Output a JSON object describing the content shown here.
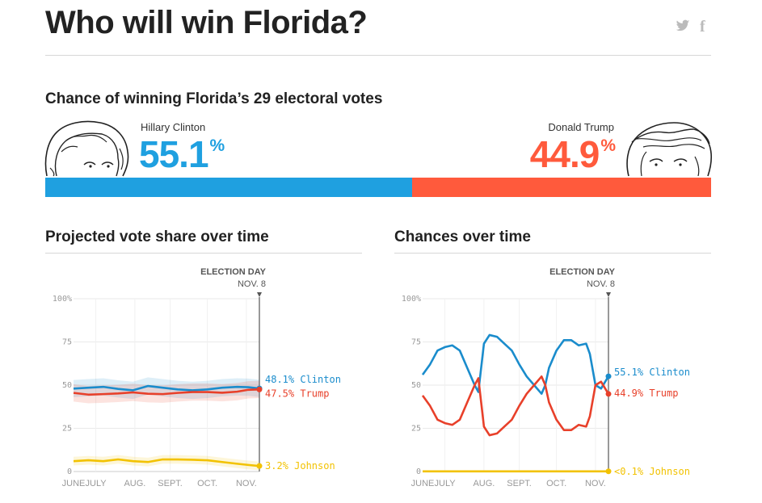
{
  "header": {
    "title": "Who will win Florida?",
    "share_twitter_icon": "twitter-icon",
    "share_facebook_icon": "facebook-icon"
  },
  "summary": {
    "heading": "Chance of winning Florida’s 29 electoral votes",
    "clinton": {
      "name": "Hillary Clinton",
      "value": "55.1",
      "unit": "%",
      "fraction": 0.551,
      "color": "#1fa0e0"
    },
    "trump": {
      "name": "Donald Trump",
      "value": "44.9",
      "unit": "%",
      "fraction": 0.449,
      "color": "#ff5a3c"
    }
  },
  "colors": {
    "clinton": "#1a8ccc",
    "trump": "#e8402a",
    "johnson": "#f2c200",
    "grid": "#e6e6e6"
  },
  "chart_data": [
    {
      "type": "line",
      "title": "Projected vote share over time",
      "marker_label": "ELECTION DAY",
      "marker_date": "NOV. 8",
      "xlabels": [
        "JUNE",
        "JULY",
        "AUG.",
        "SEPT.",
        "OCT.",
        "NOV."
      ],
      "yticks": [
        "0",
        "25",
        "50",
        "75",
        "100%"
      ],
      "ylim": [
        0,
        100
      ],
      "x": [
        0,
        0.08,
        0.16,
        0.24,
        0.32,
        0.4,
        0.48,
        0.56,
        0.64,
        0.72,
        0.8,
        0.88,
        0.94,
        1.0
      ],
      "series": [
        {
          "name": "Clinton",
          "end_label": "48.1% Clinton",
          "values": [
            48.0,
            48.5,
            49.0,
            47.8,
            47.0,
            49.5,
            48.5,
            47.5,
            47.0,
            47.5,
            48.5,
            49.0,
            48.8,
            48.1
          ]
        },
        {
          "name": "Trump",
          "end_label": "47.5% Trump",
          "values": [
            45.5,
            44.5,
            44.8,
            45.2,
            45.8,
            45.0,
            44.8,
            45.5,
            46.0,
            46.0,
            45.6,
            46.2,
            47.3,
            47.5
          ]
        },
        {
          "name": "Johnson",
          "end_label": "3.2% Johnson",
          "values": [
            6.0,
            6.5,
            6.0,
            7.0,
            6.0,
            5.5,
            7.0,
            7.0,
            6.8,
            6.5,
            5.5,
            4.5,
            3.8,
            3.2
          ]
        }
      ]
    },
    {
      "type": "line",
      "title": "Chances over time",
      "marker_label": "ELECTION DAY",
      "marker_date": "NOV. 8",
      "xlabels": [
        "JUNE",
        "JULY",
        "AUG.",
        "SEPT.",
        "OCT.",
        "NOV."
      ],
      "yticks": [
        "0",
        "25",
        "50",
        "75",
        "100%"
      ],
      "ylim": [
        0,
        100
      ],
      "x": [
        0,
        0.04,
        0.08,
        0.12,
        0.16,
        0.2,
        0.24,
        0.28,
        0.3,
        0.33,
        0.36,
        0.4,
        0.44,
        0.48,
        0.52,
        0.56,
        0.6,
        0.64,
        0.66,
        0.68,
        0.72,
        0.76,
        0.8,
        0.84,
        0.88,
        0.9,
        0.93,
        0.96,
        1.0
      ],
      "series": [
        {
          "name": "Clinton",
          "end_label": "55.1% Clinton",
          "values": [
            56,
            62,
            70,
            72,
            73,
            70,
            60,
            50,
            46,
            74,
            79,
            78,
            74,
            70,
            62,
            55,
            50,
            45,
            50,
            60,
            70,
            76,
            76,
            73,
            74,
            68,
            50,
            48,
            55.1
          ]
        },
        {
          "name": "Trump",
          "end_label": "44.9% Trump",
          "values": [
            44,
            38,
            30,
            28,
            27,
            30,
            40,
            50,
            54,
            26,
            21,
            22,
            26,
            30,
            38,
            45,
            50,
            55,
            50,
            40,
            30,
            24,
            24,
            27,
            26,
            32,
            50,
            52,
            44.9
          ]
        },
        {
          "name": "Johnson",
          "end_label": "<0.1% Johnson",
          "values": [
            0.1,
            0.1,
            0.1,
            0.1,
            0.1,
            0.1,
            0.1,
            0.1,
            0.1,
            0.1,
            0.1,
            0.1,
            0.1,
            0.1,
            0.1,
            0.1,
            0.1,
            0.1,
            0.1,
            0.1,
            0.1,
            0.1,
            0.1,
            0.1,
            0.1,
            0.1,
            0.1,
            0.1,
            0.1
          ]
        }
      ]
    }
  ]
}
